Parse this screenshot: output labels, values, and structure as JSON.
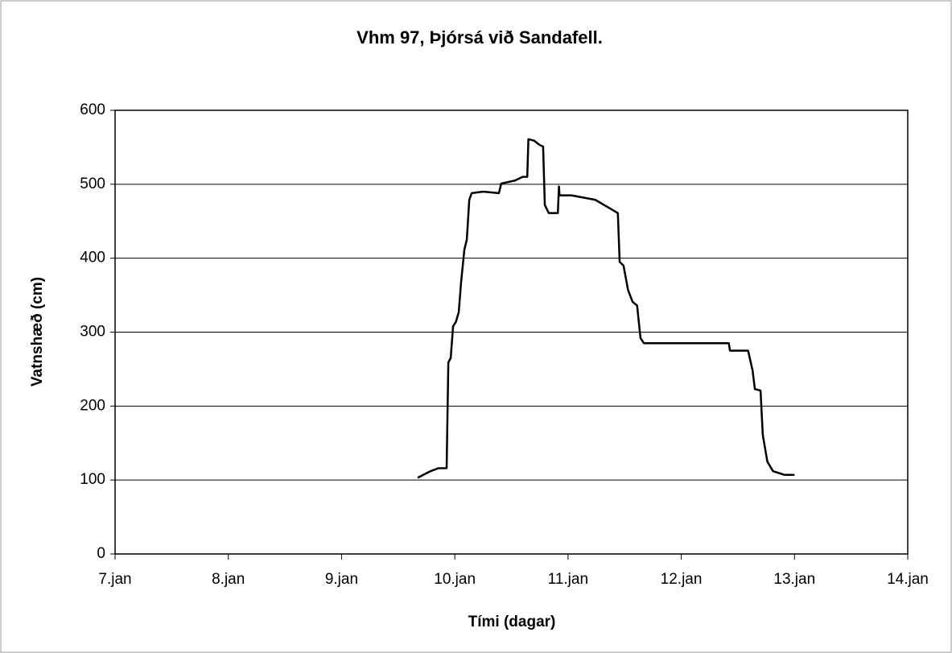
{
  "chart_data": {
    "type": "line",
    "title": "Vhm 97, Þjórsá við Sandafell.",
    "x_label": "Tími (dagar)",
    "y_label": "Vatnshæð (cm)",
    "xlim": [
      7,
      14
    ],
    "xticks": [
      {
        "value": 7,
        "label": "7.jan"
      },
      {
        "value": 8,
        "label": "8.jan"
      },
      {
        "value": 9,
        "label": "9.jan"
      },
      {
        "value": 10,
        "label": "10.jan"
      },
      {
        "value": 11,
        "label": "11.jan"
      },
      {
        "value": 12,
        "label": "12.jan"
      },
      {
        "value": 13,
        "label": "13.jan"
      },
      {
        "value": 14,
        "label": "14.jan"
      }
    ],
    "ylim": [
      0,
      600
    ],
    "yticks": [
      0,
      100,
      200,
      300,
      400,
      500,
      600
    ],
    "grid": true,
    "series": [
      {
        "color": "#000000",
        "x": [
          9.672,
          9.786,
          9.857,
          9.928,
          9.943,
          9.964,
          9.985,
          10.01,
          10.035,
          10.056,
          10.085,
          10.106,
          10.128,
          10.149,
          10.25,
          10.39,
          10.41,
          10.53,
          10.6,
          10.64,
          10.65,
          10.7,
          10.75,
          10.78,
          10.795,
          10.83,
          10.91,
          10.92,
          10.925,
          11.03,
          11.24,
          11.385,
          11.44,
          11.456,
          11.49,
          11.53,
          11.57,
          11.61,
          11.64,
          11.67,
          12.42,
          12.43,
          12.59,
          12.63,
          12.65,
          12.7,
          12.72,
          12.76,
          12.81,
          12.91,
          13.0
        ],
        "values": [
          103,
          112,
          116,
          116,
          259,
          265,
          308,
          314,
          327,
          368,
          412,
          425,
          479,
          488,
          490,
          488,
          501,
          505,
          510,
          510,
          561,
          559,
          553,
          551,
          472,
          461,
          461,
          497,
          485,
          485,
          479,
          466,
          461,
          395,
          390,
          357,
          341,
          336,
          292,
          285,
          285,
          275,
          275,
          248,
          223,
          221,
          161,
          125,
          112,
          107,
          107
        ]
      }
    ]
  }
}
